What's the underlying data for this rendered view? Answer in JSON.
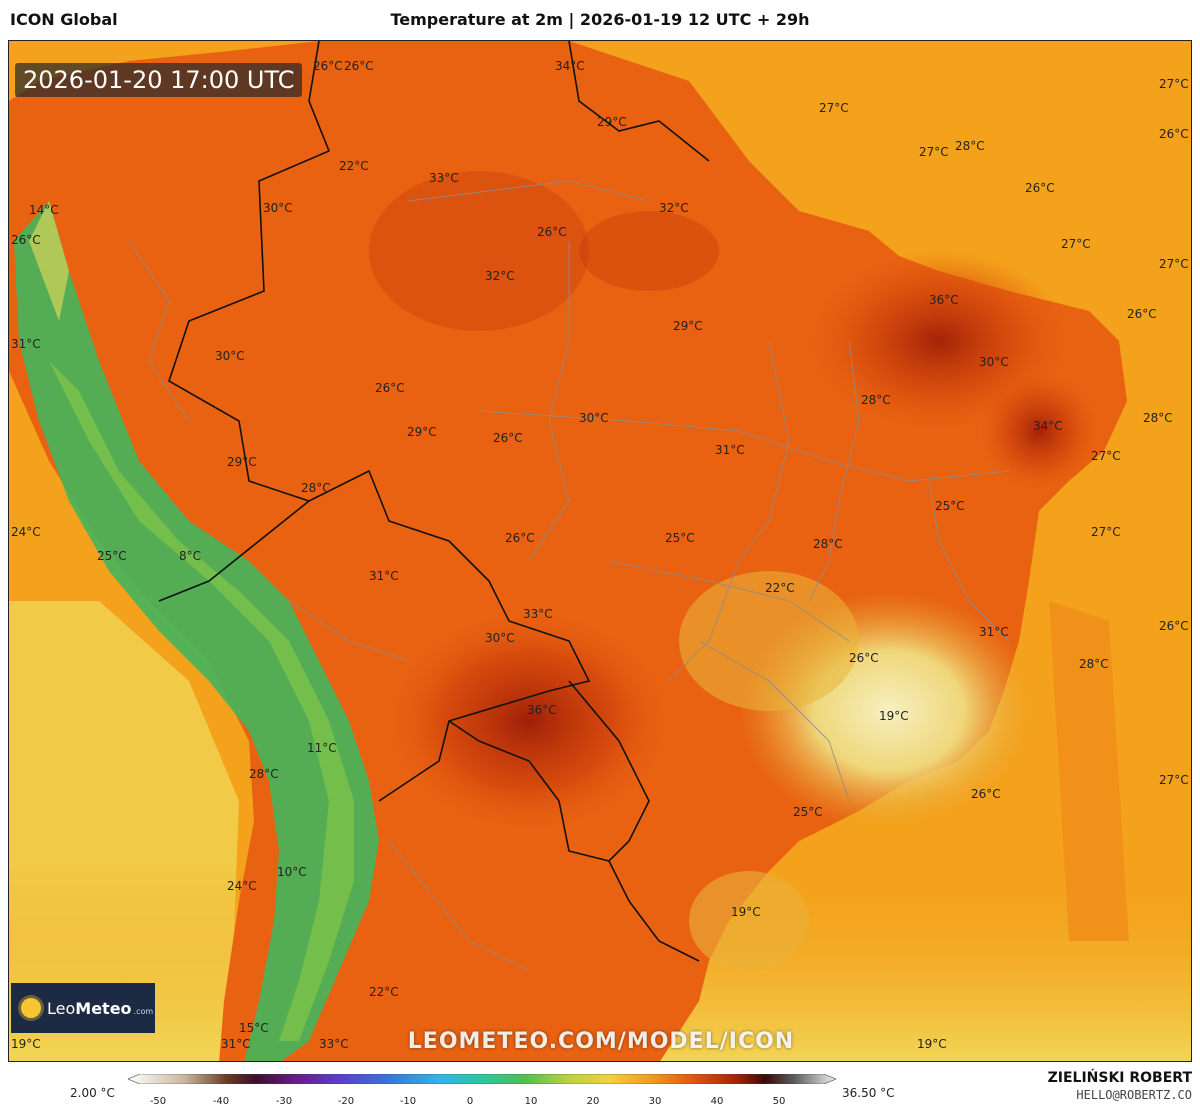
{
  "header": {
    "model": "ICON Global",
    "title": "Temperature at 2m | 2026-01-19 12 UTC + 29h"
  },
  "map": {
    "valid_time": "2026-01-20 17:00 UTC",
    "watermark": "LEOMETEO.COM/MODEL/ICON",
    "logo": {
      "brand_light": "Leo",
      "brand_bold": "Meteo",
      "suffix": ".com",
      "icon": "sun-icon"
    },
    "temperature_labels": [
      "26°C",
      "26°C",
      "34°C",
      "29°C",
      "27°C",
      "27°C",
      "26°C",
      "27°C",
      "28°C",
      "22°C",
      "33°C",
      "26°C",
      "32°C",
      "14°C",
      "30°C",
      "26°C",
      "26°C",
      "32°C",
      "27°C",
      "27°C",
      "36°C",
      "29°C",
      "26°C",
      "31°C",
      "30°C",
      "30°C",
      "26°C",
      "28°C",
      "30°C",
      "28°C",
      "29°C",
      "26°C",
      "34°C",
      "31°C",
      "27°C",
      "29°C",
      "28°C",
      "25°C",
      "24°C",
      "26°C",
      "25°C",
      "27°C",
      "25°C",
      "8°C",
      "28°C",
      "31°C",
      "22°C",
      "33°C",
      "31°C",
      "26°C",
      "30°C",
      "26°C",
      "28°C",
      "36°C",
      "19°C",
      "11°C",
      "27°C",
      "28°C",
      "26°C",
      "25°C",
      "10°C",
      "24°C",
      "19°C",
      "22°C",
      "15°C",
      "19°C",
      "31°C",
      "33°C",
      "19°C"
    ]
  },
  "footer": {
    "scale_min": "2.00 °C",
    "scale_max": "36.50 °C",
    "ticks": [
      "-50",
      "-40",
      "-30",
      "-20",
      "-10",
      "0",
      "10",
      "20",
      "30",
      "40",
      "50"
    ],
    "author": "ZIELIŃSKI ROBERT",
    "contact": "HELLO@ROBERTZ.CO"
  },
  "colors": {
    "ocean_warm": "#f4a11b",
    "land_hot": "#e4580c",
    "land_very_hot": "#b3260a",
    "andes_cold": "#3aa95a",
    "cool_yellow": "#f0dc6a"
  }
}
